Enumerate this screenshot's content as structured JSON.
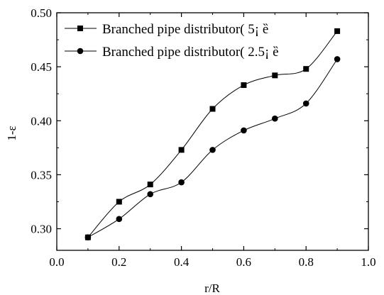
{
  "chart_data": {
    "type": "line",
    "xlabel": "r/R",
    "ylabel": "1-ε",
    "xlim": [
      0.0,
      1.0
    ],
    "ylim": [
      0.28,
      0.5
    ],
    "xticks": [
      0.0,
      0.2,
      0.4,
      0.6,
      0.8,
      1.0
    ],
    "xtick_labels": [
      "0.0",
      "0.2",
      "0.4",
      "0.6",
      "0.8",
      "1.0"
    ],
    "yticks": [
      0.3,
      0.35,
      0.4,
      0.45,
      0.5
    ],
    "ytick_labels": [
      "0.30",
      "0.35",
      "0.40",
      "0.45",
      "0.50"
    ],
    "grid": false,
    "legend_position": "top-left",
    "series": [
      {
        "name": "Branched pipe distributor( 5¡ ȅ",
        "marker": "square",
        "color": "#000000",
        "x": [
          0.1,
          0.2,
          0.3,
          0.4,
          0.5,
          0.6,
          0.7,
          0.8,
          0.9
        ],
        "y": [
          0.292,
          0.325,
          0.341,
          0.373,
          0.411,
          0.433,
          0.442,
          0.448,
          0.483
        ]
      },
      {
        "name": "Branched pipe distributor( 2.5¡ ȅ",
        "marker": "circle",
        "color": "#000000",
        "x": [
          0.1,
          0.2,
          0.3,
          0.4,
          0.5,
          0.6,
          0.7,
          0.8,
          0.9
        ],
        "y": [
          0.292,
          0.309,
          0.332,
          0.343,
          0.373,
          0.391,
          0.402,
          0.416,
          0.457
        ]
      }
    ]
  }
}
